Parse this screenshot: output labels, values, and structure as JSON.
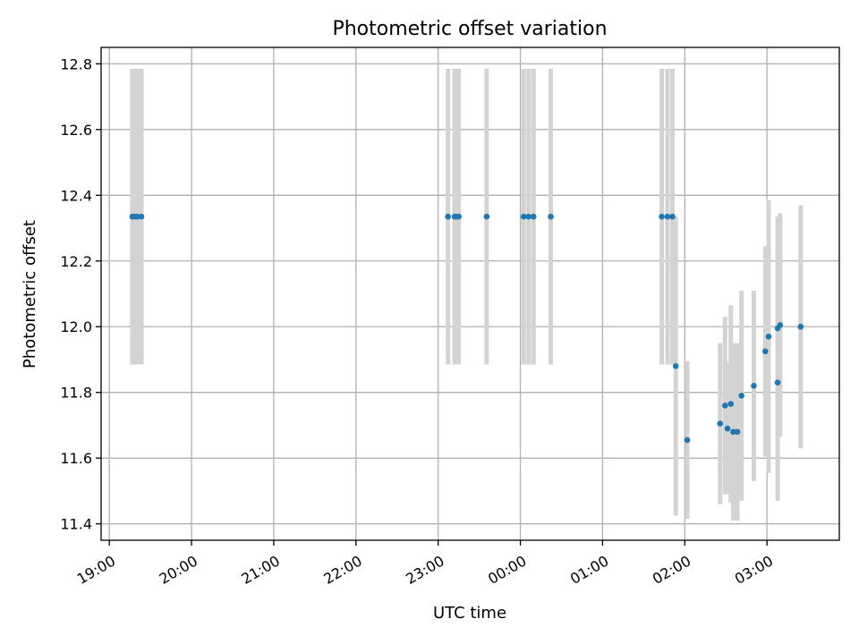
{
  "chart_data": {
    "type": "scatter",
    "title": "Photometric offset variation",
    "xlabel": "UTC time",
    "ylabel": "Photometric offset",
    "x_unit": "hours",
    "xlim": [
      18.9,
      27.88
    ],
    "ylim": [
      11.35,
      12.85
    ],
    "grid": true,
    "y_ticks": [
      11.4,
      11.6,
      11.8,
      12.0,
      12.2,
      12.4,
      12.6,
      12.8
    ],
    "x_ticks": [
      {
        "value": 19,
        "label": "19:00"
      },
      {
        "value": 20,
        "label": "20:00"
      },
      {
        "value": 21,
        "label": "21:00"
      },
      {
        "value": 22,
        "label": "22:00"
      },
      {
        "value": 23,
        "label": "23:00"
      },
      {
        "value": 24,
        "label": "00:00"
      },
      {
        "value": 25,
        "label": "01:00"
      },
      {
        "value": 26,
        "label": "02:00"
      },
      {
        "value": 27,
        "label": "03:00"
      }
    ],
    "colors": {
      "point": "#1f77b4",
      "errorbar": "#d3d3d3"
    },
    "points": [
      {
        "x": 19.28,
        "y": 12.335,
        "err": 0.45
      },
      {
        "x": 19.31,
        "y": 12.335,
        "err": 0.45
      },
      {
        "x": 19.34,
        "y": 12.335,
        "err": 0.45
      },
      {
        "x": 19.39,
        "y": 12.335,
        "err": 0.45
      },
      {
        "x": 23.12,
        "y": 12.335,
        "err": 0.45
      },
      {
        "x": 23.2,
        "y": 12.335,
        "err": 0.45
      },
      {
        "x": 23.22,
        "y": 12.335,
        "err": 0.45
      },
      {
        "x": 23.25,
        "y": 12.335,
        "err": 0.45
      },
      {
        "x": 23.59,
        "y": 12.335,
        "err": 0.45
      },
      {
        "x": 24.04,
        "y": 12.335,
        "err": 0.45
      },
      {
        "x": 24.1,
        "y": 12.335,
        "err": 0.45
      },
      {
        "x": 24.16,
        "y": 12.335,
        "err": 0.45
      },
      {
        "x": 24.37,
        "y": 12.335,
        "err": 0.45
      },
      {
        "x": 25.72,
        "y": 12.335,
        "err": 0.45
      },
      {
        "x": 25.79,
        "y": 12.335,
        "err": 0.45
      },
      {
        "x": 25.85,
        "y": 12.335,
        "err": 0.45
      },
      {
        "x": 25.89,
        "y": 11.88,
        "err": 0.455
      },
      {
        "x": 26.03,
        "y": 11.655,
        "err": 0.24
      },
      {
        "x": 26.43,
        "y": 11.705,
        "err": 0.245
      },
      {
        "x": 26.49,
        "y": 11.76,
        "err": 0.27
      },
      {
        "x": 26.52,
        "y": 11.69,
        "err": 0.2
      },
      {
        "x": 26.56,
        "y": 11.765,
        "err": 0.3
      },
      {
        "x": 26.59,
        "y": 11.68,
        "err": 0.27
      },
      {
        "x": 26.64,
        "y": 11.68,
        "err": 0.27
      },
      {
        "x": 26.69,
        "y": 11.79,
        "err": 0.32
      },
      {
        "x": 26.84,
        "y": 11.82,
        "err": 0.29
      },
      {
        "x": 26.98,
        "y": 11.925,
        "err": 0.32
      },
      {
        "x": 27.02,
        "y": 11.97,
        "err": 0.415
      },
      {
        "x": 27.13,
        "y": 11.995,
        "err": 0.34
      },
      {
        "x": 27.13,
        "y": 11.83,
        "err": 0.36
      },
      {
        "x": 27.16,
        "y": 12.005,
        "err": 0.34
      },
      {
        "x": 27.41,
        "y": 12.0,
        "err": 0.37
      }
    ]
  }
}
